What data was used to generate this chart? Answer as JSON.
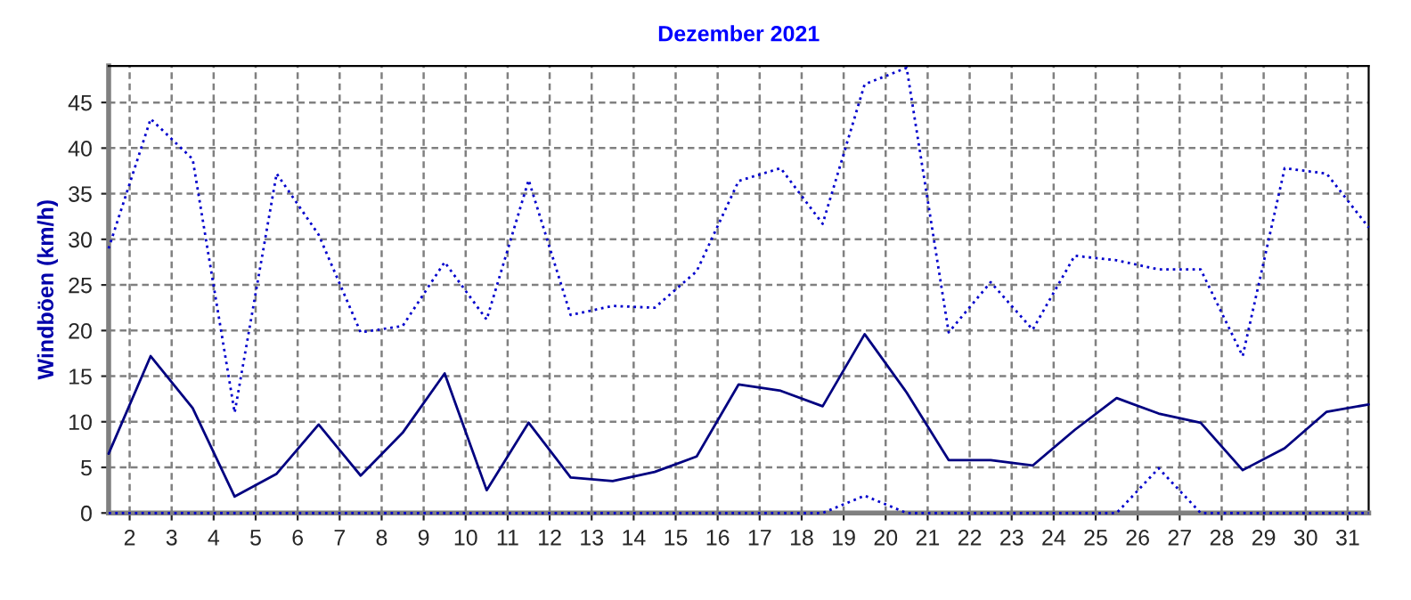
{
  "chart_data": {
    "type": "line",
    "title": "Dezember 2021",
    "ylabel": "Windböen (km/h)",
    "x": [
      1.5,
      2.5,
      3.5,
      4.5,
      5.5,
      6.5,
      7.5,
      8.5,
      9.5,
      10.5,
      11.5,
      12.5,
      13.5,
      14.5,
      15.5,
      16.5,
      17.5,
      18.5,
      19.5,
      20.5,
      21.5,
      22.5,
      23.5,
      24.5,
      25.5,
      26.5,
      27.5,
      28.5,
      29.5,
      30.5,
      31.5
    ],
    "series": [
      {
        "color": "#0000cc",
        "line_style": "dotted",
        "values": [
          29,
          43.2,
          38.8,
          11,
          37.2,
          30.5,
          19.8,
          20.5,
          27.5,
          21.2,
          36.5,
          21.7,
          22.7,
          22.5,
          26.5,
          36.4,
          37.8,
          31.7,
          47,
          48.8,
          19.8,
          25.3,
          20.1,
          28.2,
          27.7,
          26.7,
          26.7,
          17.2,
          37.8,
          37.2,
          31.3
        ]
      },
      {
        "color": "#000080",
        "line_style": "solid",
        "values": [
          6.5,
          17.2,
          11.5,
          1.8,
          4.3,
          9.7,
          4.1,
          8.8,
          15.3,
          2.5,
          9.9,
          3.9,
          3.5,
          4.5,
          6.2,
          14.1,
          13.4,
          11.7,
          19.6,
          13.2,
          5.8,
          5.8,
          5.2,
          9.1,
          12.6,
          10.9,
          9.9,
          4.7,
          7.1,
          11.1,
          11.9
        ]
      },
      {
        "color": "#0000cc",
        "line_style": "dotted",
        "values": [
          0,
          0,
          0,
          0,
          0,
          0,
          0,
          0,
          0,
          0,
          0,
          0,
          0,
          0,
          0,
          0,
          0,
          0,
          1.9,
          0,
          0,
          0,
          0,
          0,
          0,
          4.9,
          0,
          0,
          0,
          0,
          0
        ]
      }
    ],
    "xlim": [
      1.5,
      31.5
    ],
    "xticks": [
      2,
      3,
      4,
      5,
      6,
      7,
      8,
      9,
      10,
      11,
      12,
      13,
      14,
      15,
      16,
      17,
      18,
      19,
      20,
      21,
      22,
      23,
      24,
      25,
      26,
      27,
      28,
      29,
      30,
      31
    ],
    "ylim": [
      0,
      49
    ],
    "yticks": [
      0,
      5,
      10,
      15,
      20,
      25,
      30,
      35,
      40,
      45
    ],
    "grid": true,
    "marker": "none"
  }
}
